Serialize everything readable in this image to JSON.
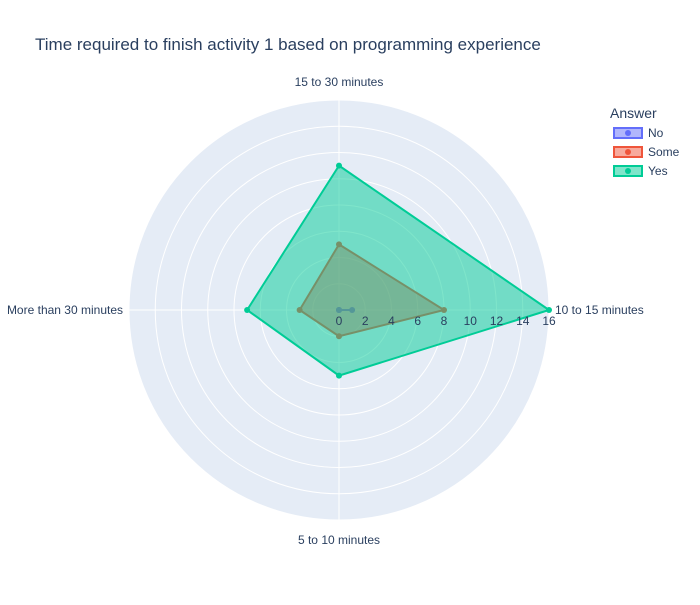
{
  "chart_data": {
    "type": "radar",
    "title": "Time required to finish activity 1 based on programming experience",
    "categories": [
      "10 to 15 minutes",
      "15 to 30 minutes",
      "More than 30 minutes",
      "5 to 10 minutes"
    ],
    "radial_range": [
      0,
      16
    ],
    "radial_ticks": [
      0,
      2,
      4,
      6,
      8,
      10,
      12,
      14,
      16
    ],
    "grid": true,
    "legend": {
      "title": "Answer",
      "placement": "top-right"
    },
    "series": [
      {
        "name": "No",
        "values": [
          1,
          0,
          0,
          0
        ],
        "color": "#636efa"
      },
      {
        "name": "Some",
        "values": [
          8,
          5,
          3,
          2
        ],
        "color": "#ef553b"
      },
      {
        "name": "Yes",
        "values": [
          16,
          11,
          7,
          5
        ],
        "color": "#00cc96"
      }
    ],
    "colors": {
      "polar_bg": "#e5ecf6",
      "grid": "#ffffff",
      "text": "#2a3f5f"
    }
  }
}
